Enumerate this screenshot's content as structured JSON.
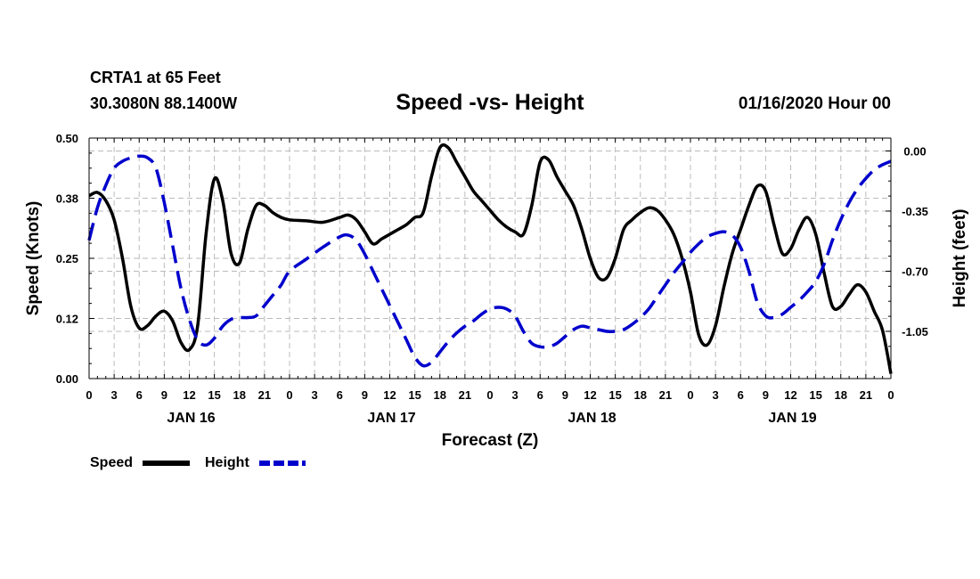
{
  "header": {
    "station": "CRTA1 at 65 Feet",
    "coords": "30.3080N 88.1400W",
    "title": "Speed -vs- Height",
    "date": "01/16/2020 Hour 00"
  },
  "colors": {
    "speed": "#000000",
    "height": "#0000cc",
    "grid": "#bbbbbb"
  },
  "chart_data": {
    "type": "line",
    "title": "Speed -vs- Height",
    "xlabel": "Forecast (Z)",
    "ylabel": "Speed (Knots)",
    "y2label": "Height (feet)",
    "xlim": [
      0,
      96
    ],
    "ylim": [
      0,
      0.5
    ],
    "y2lim": [
      0.075,
      -1.325
    ],
    "y_ticks": [
      0.0,
      0.125,
      0.25,
      0.375,
      0.5
    ],
    "y_tick_labels": [
      "0.00",
      "0.12",
      "0.25",
      "0.38",
      "0.50"
    ],
    "y2_ticks": [
      0.0,
      -0.35,
      -0.7,
      -1.05
    ],
    "y2_tick_labels": [
      "0.00",
      "-0.35",
      "-0.70",
      "-1.05"
    ],
    "x_ticks": [
      0,
      3,
      6,
      9,
      12,
      15,
      18,
      21,
      24,
      27,
      30,
      33,
      36,
      39,
      42,
      45,
      48,
      51,
      54,
      57,
      60,
      63,
      66,
      69,
      72,
      75,
      78,
      81,
      84,
      87,
      90,
      93,
      96
    ],
    "x_tick_labels": [
      "0",
      "3",
      "6",
      "9",
      "12",
      "15",
      "18",
      "21",
      "0",
      "3",
      "6",
      "9",
      "12",
      "15",
      "18",
      "21",
      "0",
      "3",
      "6",
      "9",
      "12",
      "15",
      "18",
      "21",
      "0",
      "3",
      "6",
      "9",
      "12",
      "15",
      "18",
      "21",
      "0"
    ],
    "day_labels": [
      {
        "x": 12,
        "label": "JAN 16"
      },
      {
        "x": 36,
        "label": "JAN 17"
      },
      {
        "x": 60,
        "label": "JAN 18"
      },
      {
        "x": 84,
        "label": "JAN 19"
      }
    ],
    "grid": true,
    "legend": [
      {
        "name": "Speed",
        "style": "solid"
      },
      {
        "name": "Height",
        "style": "dashed"
      }
    ],
    "legend_position": "bottom-left",
    "series": [
      {
        "name": "Speed",
        "axis": "left",
        "style": "solid",
        "x": [
          0,
          1,
          2,
          3,
          4,
          5,
          6,
          7,
          8,
          9,
          10,
          11,
          12,
          13,
          14,
          15,
          16,
          17,
          18,
          19,
          20,
          21,
          22,
          23,
          24,
          26,
          28,
          30,
          31,
          32,
          33,
          34,
          35,
          36,
          37,
          38,
          39,
          40,
          41,
          42,
          43,
          44,
          45,
          46,
          47,
          48,
          49,
          50,
          51,
          52,
          53,
          54,
          55,
          56,
          57,
          58,
          59,
          60,
          61,
          62,
          63,
          64,
          65,
          66,
          67,
          68,
          69,
          70,
          71,
          72,
          73,
          74,
          75,
          76,
          77,
          78,
          79,
          80,
          81,
          82,
          83,
          84,
          85,
          86,
          87,
          88,
          89,
          90,
          91,
          92,
          93,
          94,
          95,
          96
        ],
        "values": [
          0.38,
          0.387,
          0.37,
          0.33,
          0.25,
          0.15,
          0.105,
          0.11,
          0.13,
          0.14,
          0.12,
          0.075,
          0.06,
          0.11,
          0.3,
          0.415,
          0.37,
          0.26,
          0.24,
          0.31,
          0.36,
          0.36,
          0.345,
          0.335,
          0.33,
          0.328,
          0.325,
          0.335,
          0.34,
          0.33,
          0.305,
          0.28,
          0.29,
          0.3,
          0.31,
          0.32,
          0.335,
          0.345,
          0.42,
          0.48,
          0.48,
          0.45,
          0.42,
          0.39,
          0.37,
          0.35,
          0.33,
          0.315,
          0.305,
          0.3,
          0.36,
          0.45,
          0.455,
          0.42,
          0.39,
          0.36,
          0.31,
          0.25,
          0.21,
          0.21,
          0.25,
          0.31,
          0.33,
          0.345,
          0.355,
          0.35,
          0.33,
          0.3,
          0.25,
          0.18,
          0.09,
          0.07,
          0.11,
          0.19,
          0.26,
          0.31,
          0.36,
          0.4,
          0.39,
          0.32,
          0.26,
          0.27,
          0.31,
          0.335,
          0.3,
          0.22,
          0.15,
          0.15,
          0.175,
          0.195,
          0.18,
          0.14,
          0.1,
          0.01
        ]
      },
      {
        "name": "Height",
        "axis": "right",
        "style": "dashed",
        "x": [
          0,
          1,
          2,
          3,
          4,
          5,
          6,
          7,
          8,
          9,
          10,
          11,
          12,
          13,
          14,
          15,
          16,
          17,
          18,
          19,
          20,
          21,
          22,
          23,
          24,
          26,
          28,
          30,
          31,
          32,
          33,
          34,
          35,
          36,
          37,
          38,
          39,
          40,
          41,
          42,
          43,
          44,
          45,
          46,
          47,
          48,
          49,
          50,
          51,
          52,
          53,
          54,
          55,
          56,
          57,
          58,
          59,
          60,
          61,
          62,
          63,
          64,
          65,
          66,
          67,
          68,
          69,
          70,
          71,
          72,
          73,
          74,
          75,
          76,
          77,
          78,
          79,
          80,
          81,
          82,
          83,
          84,
          85,
          86,
          87,
          88,
          89,
          90,
          91,
          92,
          93,
          94,
          95,
          96
        ],
        "values": [
          -0.52,
          -0.33,
          -0.2,
          -0.1,
          -0.06,
          -0.04,
          -0.03,
          -0.04,
          -0.1,
          -0.3,
          -0.55,
          -0.8,
          -0.98,
          -1.1,
          -1.13,
          -1.09,
          -1.02,
          -0.98,
          -0.97,
          -0.97,
          -0.96,
          -0.9,
          -0.84,
          -0.78,
          -0.7,
          -0.63,
          -0.56,
          -0.5,
          -0.49,
          -0.52,
          -0.6,
          -0.7,
          -0.8,
          -0.9,
          -1.0,
          -1.1,
          -1.2,
          -1.25,
          -1.23,
          -1.17,
          -1.11,
          -1.06,
          -1.02,
          -0.99,
          -0.95,
          -0.92,
          -0.91,
          -0.92,
          -0.96,
          -1.05,
          -1.12,
          -1.14,
          -1.14,
          -1.12,
          -1.08,
          -1.04,
          -1.02,
          -1.03,
          -1.04,
          -1.05,
          -1.05,
          -1.04,
          -1.01,
          -0.97,
          -0.92,
          -0.85,
          -0.78,
          -0.71,
          -0.65,
          -0.59,
          -0.54,
          -0.5,
          -0.48,
          -0.47,
          -0.49,
          -0.56,
          -0.7,
          -0.88,
          -0.96,
          -0.97,
          -0.95,
          -0.91,
          -0.87,
          -0.82,
          -0.76,
          -0.66,
          -0.52,
          -0.4,
          -0.3,
          -0.22,
          -0.16,
          -0.11,
          -0.08,
          -0.06
        ]
      }
    ]
  }
}
